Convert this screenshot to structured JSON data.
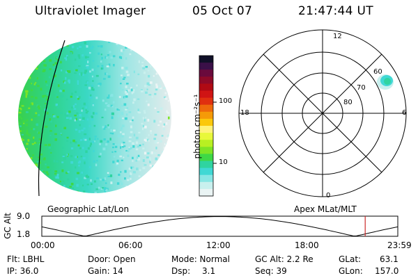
{
  "header": {
    "instrument": "Ultraviolet Imager",
    "date": "05 Oct 07",
    "time": "21:47:44 UT"
  },
  "colorbar": {
    "unit_label": "photon cm⁻²s⁻¹",
    "ticks": [
      "100",
      "10"
    ],
    "colors": [
      "#101028",
      "#3a1048",
      "#6a0a3c",
      "#8e0a28",
      "#b00a14",
      "#d01414",
      "#e03010",
      "#ee6a0c",
      "#f59a08",
      "#fbc80c",
      "#fff27a",
      "#e8f83a",
      "#b8f022",
      "#7ee426",
      "#3ed846",
      "#2fd4a0",
      "#40d8d4",
      "#88e6e4",
      "#c8f0ee",
      "#eaf4f4"
    ]
  },
  "left_map": {
    "caption": "Geographic Lat/Lon"
  },
  "polar": {
    "caption": "Apex MLat/MLT",
    "mlt_labels": {
      "top": "12",
      "right": "6",
      "bottom": "0",
      "left": "18"
    },
    "lat_labels": [
      "60",
      "70",
      "80"
    ]
  },
  "altitude_plot": {
    "ylabel": "GC Alt",
    "ymax": "9.0",
    "ymin": "1.8",
    "x_ticks": [
      "00:00",
      "06:00",
      "12:00",
      "18:00",
      "23:59"
    ],
    "marker_color": "#cc2a2a",
    "marker_hour": 21.8
  },
  "info": {
    "flt": "Flt: LBHL",
    "ip": "IP: 36.0",
    "door": "Door: Open",
    "gain": "Gain: 14",
    "mode": "Mode: Normal",
    "dsp_label": "Dsp:",
    "dsp_value": "3.1",
    "gc_alt": "GC Alt: 2.2 Re",
    "seq": "Seq: 39",
    "glat_label": "GLat:",
    "glat_value": "63.1",
    "glon_label": "GLon:",
    "glon_value": "157.0"
  }
}
